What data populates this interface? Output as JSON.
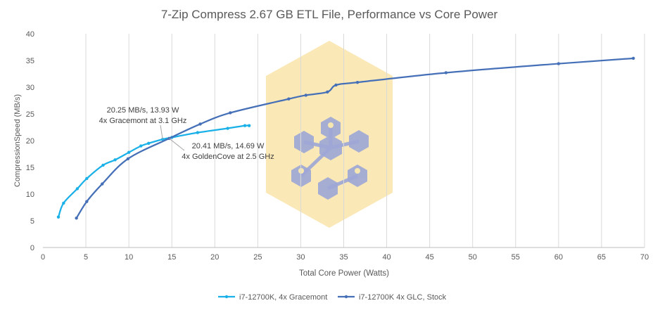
{
  "chart_data": {
    "type": "line",
    "title": "7-Zip Compress 2.67 GB ETL File, Performance vs Core Power",
    "xlabel": "Total Core Power (Watts)",
    "ylabel": "CompressionSpeed (MB/s)",
    "xlim": [
      0,
      70
    ],
    "ylim": [
      0,
      40
    ],
    "xticks": [
      0,
      5,
      10,
      15,
      20,
      25,
      30,
      35,
      40,
      45,
      50,
      55,
      60,
      65,
      70
    ],
    "yticks": [
      0,
      5,
      10,
      15,
      20,
      25,
      30,
      35,
      40
    ],
    "grid": "vertical",
    "legend_position": "bottom",
    "series": [
      {
        "name": "i7-12700K, 4x Gracemont",
        "color": "#1ab0e8",
        "x": [
          1.8,
          2.4,
          4.0,
          5.1,
          7.0,
          8.4,
          10.0,
          11.4,
          12.3,
          13.93,
          15.0,
          18.0,
          21.5,
          23.5,
          24.0
        ],
        "y": [
          5.7,
          8.3,
          11.0,
          12.9,
          15.4,
          16.4,
          17.8,
          19.0,
          19.5,
          20.25,
          20.6,
          21.5,
          22.3,
          22.8,
          22.8
        ]
      },
      {
        "name": "i7-12700K 4x GLC, Stock",
        "color": "#4570b8",
        "x": [
          3.9,
          5.1,
          6.9,
          9.9,
          14.69,
          18.3,
          21.8,
          28.6,
          30.6,
          33.1,
          34.1,
          36.6,
          46.9,
          60.0,
          68.7
        ],
        "y": [
          5.5,
          8.6,
          11.9,
          16.6,
          20.41,
          23.1,
          25.2,
          27.8,
          28.5,
          29.1,
          30.4,
          30.9,
          32.7,
          34.4,
          35.4
        ]
      }
    ],
    "annotations": [
      {
        "lines": [
          "20.25 MB/s, 13.93 W",
          "4x Gracemont at 3.1 GHz"
        ],
        "x": 13.93,
        "y": 20.25
      },
      {
        "lines": [
          "20.41 MB/s, 14.69 W",
          "4x GoldenCove at 2.5 GHz"
        ],
        "x": 14.69,
        "y": 20.41
      }
    ]
  }
}
